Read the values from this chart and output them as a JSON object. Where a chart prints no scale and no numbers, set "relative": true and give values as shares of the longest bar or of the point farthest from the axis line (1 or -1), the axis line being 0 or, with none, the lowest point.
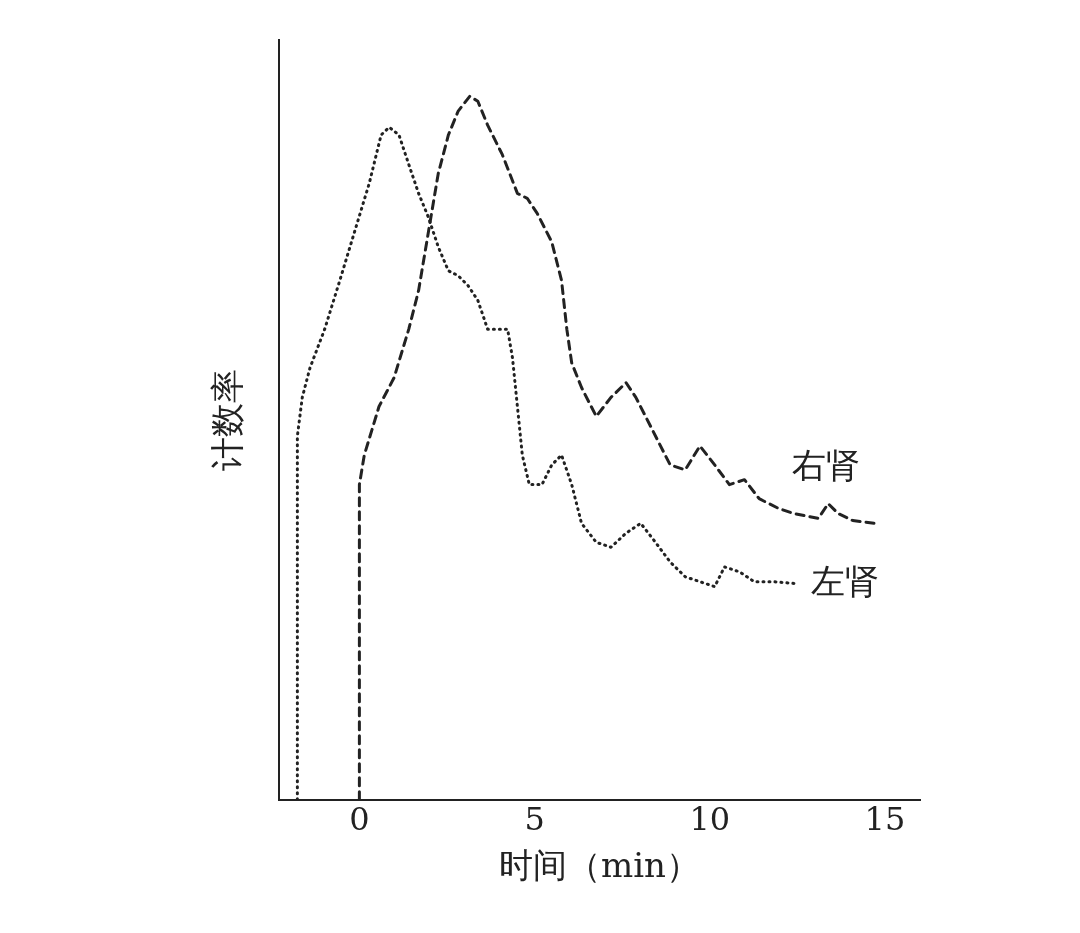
{
  "chart_data": {
    "type": "line",
    "xlabel": "时间（min）",
    "ylabel": "计数率",
    "relative": true,
    "xlim": [
      -2.3,
      16
    ],
    "xticks": [
      0,
      5,
      10,
      15
    ],
    "grid": false,
    "legend": false,
    "marker": "none",
    "series": [
      {
        "name": "右肾",
        "color": "#222222",
        "line_style": "dashed",
        "x": [
          0,
          0,
          0.14,
          0.56,
          0.99,
          1.41,
          1.69,
          1.97,
          2.25,
          2.54,
          2.82,
          3.15,
          3.38,
          3.66,
          4.08,
          4.51,
          4.79,
          5.07,
          5.49,
          5.77,
          5.92,
          6.06,
          6.34,
          6.76,
          7.18,
          7.61,
          7.89,
          8.31,
          8.87,
          9.3,
          9.72,
          10.14,
          10.56,
          10.99,
          11.41,
          11.97,
          12.39,
          13.1,
          13.38,
          13.66,
          14.08,
          14.7
        ],
        "values": [
          0,
          0.448,
          0.49,
          0.559,
          0.6,
          0.669,
          0.724,
          0.807,
          0.89,
          0.945,
          0.979,
          1,
          0.993,
          0.959,
          0.917,
          0.862,
          0.855,
          0.834,
          0.793,
          0.738,
          0.669,
          0.621,
          0.586,
          0.545,
          0.572,
          0.593,
          0.572,
          0.531,
          0.476,
          0.469,
          0.503,
          0.476,
          0.448,
          0.455,
          0.428,
          0.414,
          0.407,
          0.4,
          0.421,
          0.407,
          0.397,
          0.393
        ]
      },
      {
        "name": "左肾",
        "color": "#222222",
        "line_style": "dotted",
        "x": [
          -1.77,
          -1.77,
          -1.63,
          -1.41,
          -0.99,
          -0.56,
          -0.14,
          0.28,
          0.62,
          0.85,
          1.13,
          1.41,
          1.69,
          1.97,
          2.25,
          2.54,
          2.82,
          3.1,
          3.38,
          3.66,
          4.23,
          4.37,
          4.51,
          4.65,
          4.85,
          5.21,
          5.49,
          5.77,
          6.06,
          6.34,
          6.76,
          7.18,
          7.61,
          8.03,
          8.45,
          8.87,
          9.3,
          9.72,
          10.14,
          10.42,
          10.85,
          11.27,
          11.83,
          12.54
        ],
        "values": [
          0,
          0.517,
          0.572,
          0.614,
          0.669,
          0.738,
          0.807,
          0.876,
          0.945,
          0.956,
          0.945,
          0.903,
          0.862,
          0.828,
          0.786,
          0.752,
          0.745,
          0.731,
          0.71,
          0.669,
          0.669,
          0.628,
          0.559,
          0.49,
          0.448,
          0.448,
          0.476,
          0.49,
          0.448,
          0.393,
          0.366,
          0.359,
          0.379,
          0.393,
          0.366,
          0.338,
          0.317,
          0.31,
          0.303,
          0.331,
          0.324,
          0.31,
          0.31,
          0.307
        ]
      }
    ]
  }
}
